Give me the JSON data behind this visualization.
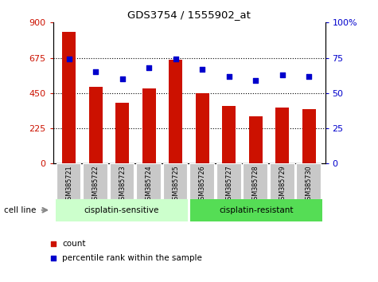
{
  "title": "GDS3754 / 1555902_at",
  "categories": [
    "GSM385721",
    "GSM385722",
    "GSM385723",
    "GSM385724",
    "GSM385725",
    "GSM385726",
    "GSM385727",
    "GSM385728",
    "GSM385729",
    "GSM385730"
  ],
  "counts": [
    840,
    490,
    390,
    480,
    665,
    450,
    370,
    300,
    360,
    345
  ],
  "percentile_ranks": [
    74,
    65,
    60,
    68,
    74,
    67,
    62,
    59,
    63,
    62
  ],
  "bar_color": "#cc1100",
  "dot_color": "#0000cc",
  "left_ylim": [
    0,
    900
  ],
  "right_ylim": [
    0,
    100
  ],
  "left_yticks": [
    0,
    225,
    450,
    675,
    900
  ],
  "right_yticks": [
    0,
    25,
    50,
    75,
    100
  ],
  "left_ytick_labels": [
    "0",
    "225",
    "450",
    "675",
    "900"
  ],
  "right_ytick_labels": [
    "0",
    "25",
    "50",
    "75",
    "100%"
  ],
  "grid_values": [
    225,
    450,
    675
  ],
  "group1_label": "cisplatin-sensitive",
  "group2_label": "cisplatin-resistant",
  "group1_count": 5,
  "group2_count": 5,
  "cell_line_label": "cell line",
  "legend_count_label": "count",
  "legend_pct_label": "percentile rank within the sample",
  "group1_color": "#ccffcc",
  "group2_color": "#55dd55",
  "tick_bg_color": "#c8c8c8",
  "left_label_color": "#cc1100",
  "right_label_color": "#0000cc",
  "fig_width": 4.75,
  "fig_height": 3.54
}
